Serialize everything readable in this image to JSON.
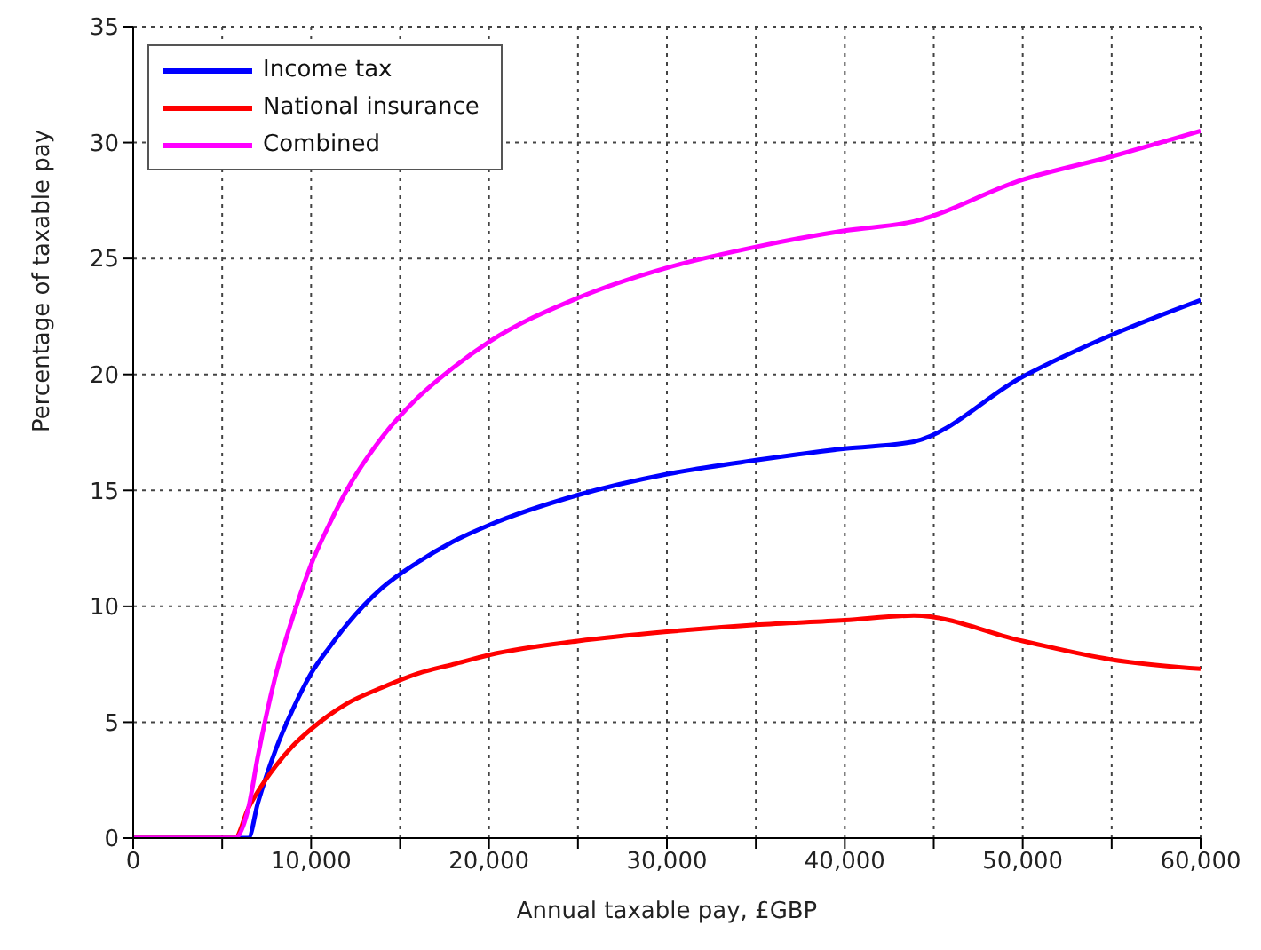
{
  "chart_data": {
    "type": "line",
    "xlabel": "Annual taxable pay, £GBP",
    "ylabel": "Percentage of taxable pay",
    "x": [
      0,
      5715,
      6475,
      7000,
      8000,
      9000,
      10000,
      11000,
      12000,
      14000,
      16000,
      18000,
      20000,
      25000,
      30000,
      35000,
      40000,
      43875,
      50000,
      55000,
      60000
    ],
    "series": [
      {
        "name": "Income tax",
        "color": "#0000ff",
        "values": [
          0,
          0,
          0,
          1.5,
          3.8,
          5.6,
          7.1,
          8.2,
          9.2,
          10.8,
          11.9,
          12.8,
          13.5,
          14.8,
          15.7,
          16.3,
          16.8,
          17.1,
          19.9,
          21.7,
          23.2
        ]
      },
      {
        "name": "National insurance",
        "color": "#ff0000",
        "values": [
          0,
          0,
          1.3,
          2.0,
          3.1,
          4.0,
          4.7,
          5.3,
          5.8,
          6.5,
          7.1,
          7.5,
          7.9,
          8.5,
          8.9,
          9.2,
          9.4,
          9.6,
          8.5,
          7.7,
          7.3
        ]
      },
      {
        "name": "Combined",
        "color": "#ff00ff",
        "values": [
          0,
          0,
          1.3,
          3.5,
          7.0,
          9.6,
          11.8,
          13.5,
          15.0,
          17.3,
          19.0,
          20.3,
          21.4,
          23.3,
          24.6,
          25.5,
          26.2,
          26.6,
          28.4,
          29.4,
          30.5
        ]
      }
    ],
    "xlim": [
      0,
      60000
    ],
    "xticks": [
      0,
      {
        "value": 5000,
        "label": null
      },
      {
        "value": 10000,
        "label": "10,000"
      },
      {
        "value": 15000,
        "label": null
      },
      {
        "value": 20000,
        "label": "20,000"
      },
      {
        "value": 25000,
        "label": null
      },
      {
        "value": 30000,
        "label": "30,000"
      },
      {
        "value": 35000,
        "label": null
      },
      {
        "value": 40000,
        "label": "40,000"
      },
      {
        "value": 45000,
        "label": null
      },
      {
        "value": 50000,
        "label": "50,000"
      },
      {
        "value": 55000,
        "label": null
      },
      {
        "value": 60000,
        "label": "60,000"
      }
    ],
    "ylim": [
      0,
      35
    ],
    "yticks": [
      0,
      5,
      10,
      15,
      20,
      25,
      30,
      35
    ],
    "grid": true,
    "legend": "top left",
    "marker": "none",
    "line_style": "solid"
  }
}
